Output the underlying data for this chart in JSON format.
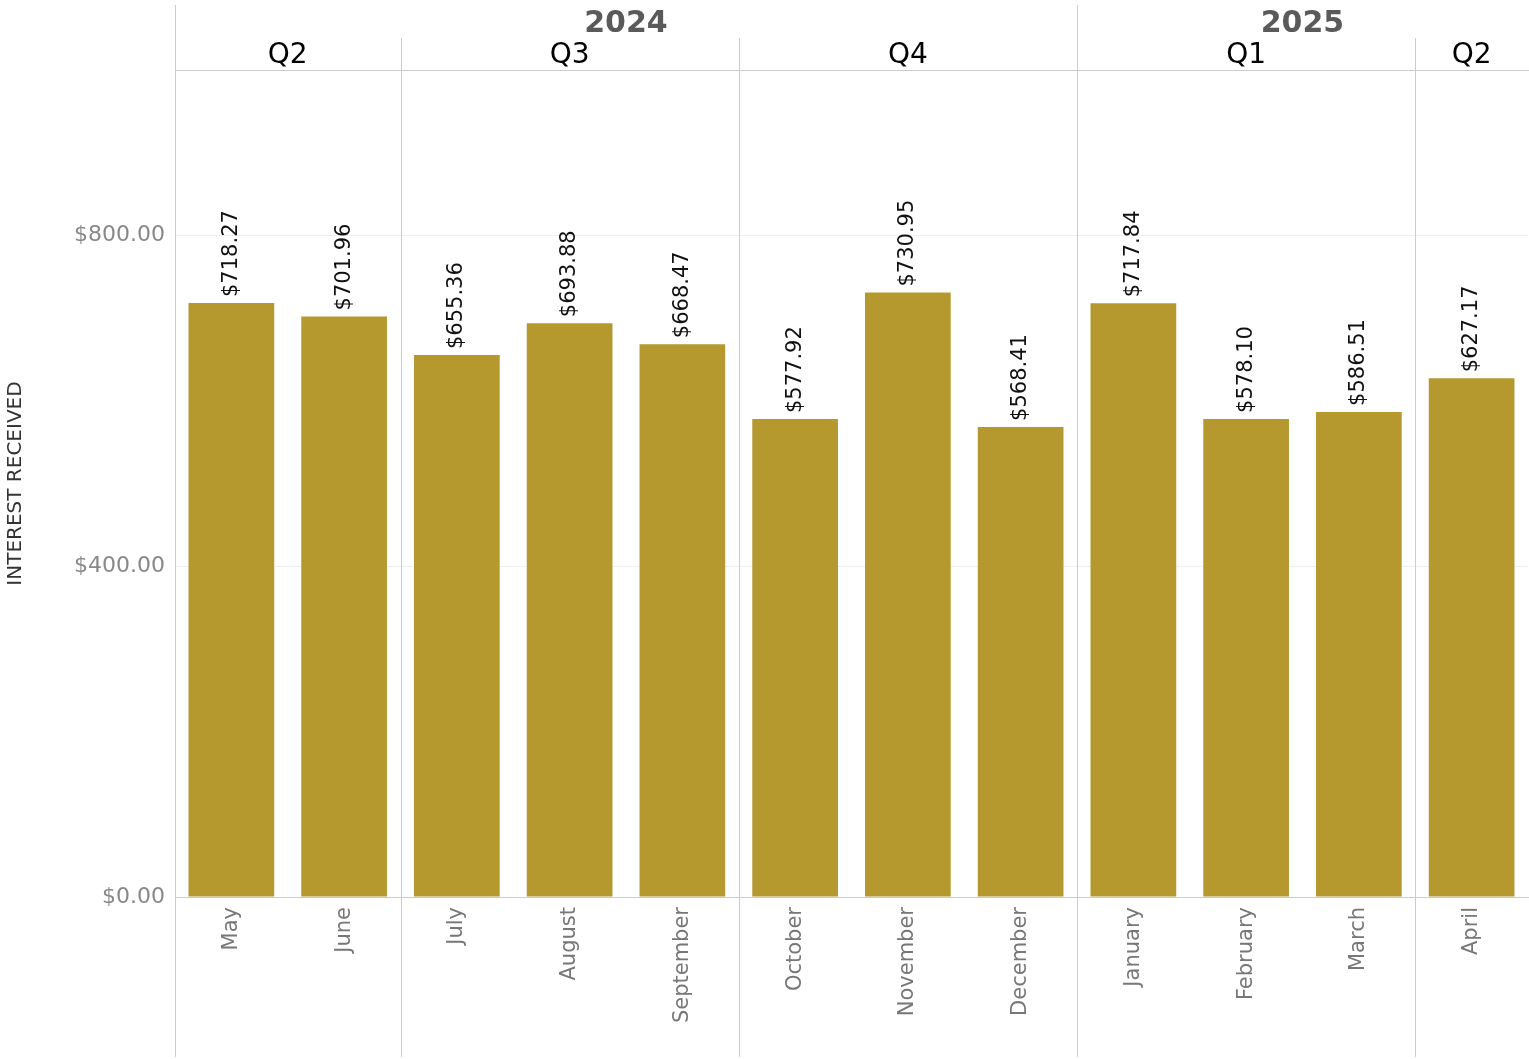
{
  "chart_data": {
    "type": "bar",
    "ylabel": "INTEREST RECEIVED",
    "categories": [
      "May",
      "June",
      "July",
      "August",
      "September",
      "October",
      "November",
      "December",
      "January",
      "February",
      "March",
      "April"
    ],
    "values": [
      718.27,
      701.96,
      655.36,
      693.88,
      668.47,
      577.92,
      730.95,
      568.41,
      717.84,
      578.1,
      586.51,
      627.17
    ],
    "value_labels": [
      "$718.27",
      "$701.96",
      "$655.36",
      "$693.88",
      "$668.47",
      "$577.92",
      "$730.95",
      "$568.41",
      "$717.84",
      "$578.10",
      "$586.51",
      "$627.17"
    ],
    "color": "#b5982e",
    "ylim": [
      0,
      1000
    ],
    "yticks": [
      {
        "value": 0,
        "label": "$0.00"
      },
      {
        "value": 400,
        "label": "$400.00"
      },
      {
        "value": 800,
        "label": "$800.00"
      }
    ],
    "grid": "y",
    "legend": false,
    "annotations": [
      "2024",
      "2025",
      "Q2",
      "Q3",
      "Q4",
      "Q1",
      "Q2"
    ]
  }
}
